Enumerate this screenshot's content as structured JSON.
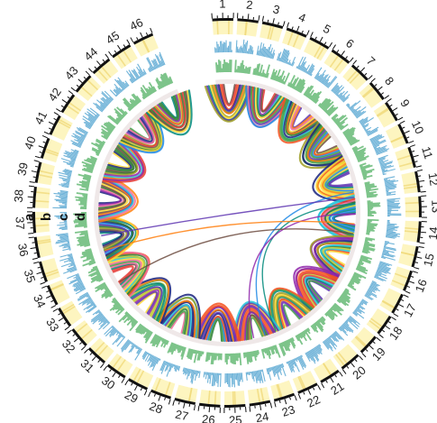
{
  "track_labels": [
    "a",
    "b",
    "c",
    "d"
  ],
  "chromosomes": [
    "1",
    "2",
    "3",
    "4",
    "5",
    "6",
    "7",
    "8",
    "9",
    "10",
    "11",
    "12",
    "13",
    "14",
    "15",
    "16",
    "17",
    "18",
    "19",
    "20",
    "21",
    "22",
    "23",
    "24",
    "25",
    "26",
    "27",
    "28",
    "29",
    "30",
    "31",
    "32",
    "33",
    "34",
    "35",
    "36",
    "37",
    "38",
    "39",
    "40",
    "41",
    "42",
    "43",
    "44",
    "45",
    "46"
  ],
  "colors": {
    "chromosome_fill": "#fdf5c0",
    "band": "#f0d97a",
    "tick": "#111111",
    "histogram_b": "#6fb3d8",
    "histogram_c": "#7dc48a",
    "link_palette": [
      "#e53935",
      "#ff7f0e",
      "#fdd835",
      "#43a047",
      "#1e88e5",
      "#8e24aa",
      "#6d4c41",
      "#00897b",
      "#c0ca33",
      "#ef6c9a",
      "#5e35b1",
      "#26c6da",
      "#2e7d32",
      "#f4511e",
      "#1a237e",
      "#9e9d24"
    ]
  }
}
